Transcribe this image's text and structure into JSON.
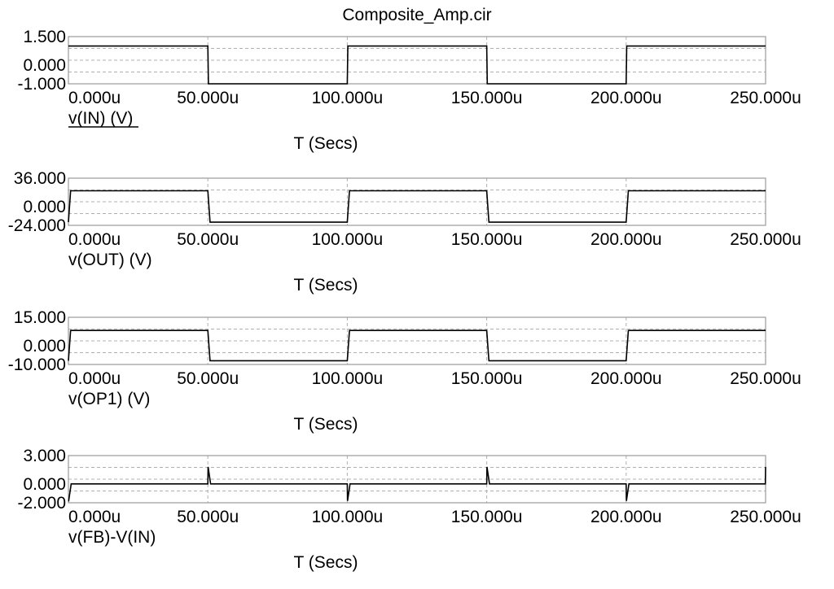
{
  "window_title": "Composite_Amp.cir",
  "chart_data": [
    {
      "type": "line",
      "series_label": "v(IN) (V)",
      "selected": true,
      "xlabel": "T (Secs)",
      "x_ticks": [
        "0.000u",
        "50.000u",
        "100.000u",
        "150.000u",
        "200.000u",
        "250.000u"
      ],
      "xlim": [
        0,
        250
      ],
      "y_ticks": [
        "1.500",
        "0.000",
        "-1.000"
      ],
      "ylim": [
        -1,
        1.5
      ],
      "series": [
        {
          "x": [
            0,
            50,
            50.2,
            100,
            100.2,
            150,
            150.2,
            200,
            200.2,
            250
          ],
          "y": [
            1,
            1,
            -1,
            -1,
            1,
            1,
            -1,
            -1,
            1,
            1
          ]
        }
      ]
    },
    {
      "type": "line",
      "series_label": "v(OUT) (V)",
      "selected": false,
      "xlabel": "T (Secs)",
      "x_ticks": [
        "0.000u",
        "50.000u",
        "100.000u",
        "150.000u",
        "200.000u",
        "250.000u"
      ],
      "xlim": [
        0,
        250
      ],
      "y_ticks": [
        "36.000",
        "0.000",
        "-24.000"
      ],
      "ylim": [
        -24,
        36
      ],
      "series": [
        {
          "x": [
            0,
            0.8,
            50,
            50.8,
            100,
            100.8,
            150,
            150.8,
            200,
            200.8,
            250
          ],
          "y": [
            -20,
            20,
            20,
            -20,
            -20,
            20,
            20,
            -20,
            -20,
            20,
            20
          ]
        }
      ]
    },
    {
      "type": "line",
      "series_label": "v(OP1) (V)",
      "selected": false,
      "xlabel": "T (Secs)",
      "x_ticks": [
        "0.000u",
        "50.000u",
        "100.000u",
        "150.000u",
        "200.000u",
        "250.000u"
      ],
      "xlim": [
        0,
        250
      ],
      "y_ticks": [
        "15.000",
        "0.000",
        "-10.000"
      ],
      "ylim": [
        -10,
        15
      ],
      "series": [
        {
          "x": [
            0,
            0.8,
            50,
            50.8,
            100,
            100.8,
            150,
            150.8,
            200,
            200.8,
            250
          ],
          "y": [
            -8,
            8,
            8,
            -8,
            -8,
            8,
            8,
            -8,
            -8,
            8,
            8
          ]
        }
      ]
    },
    {
      "type": "line",
      "series_label": "v(FB)-V(IN)",
      "selected": false,
      "xlabel": "T (Secs)",
      "x_ticks": [
        "0.000u",
        "50.000u",
        "100.000u",
        "150.000u",
        "200.000u",
        "250.000u"
      ],
      "xlim": [
        0,
        250
      ],
      "y_ticks": [
        "3.000",
        "0.000",
        "-2.000"
      ],
      "ylim": [
        -2,
        3
      ],
      "series": [
        {
          "x": [
            0,
            0.1,
            1,
            3,
            50,
            50.1,
            51,
            53,
            100,
            100.1,
            101,
            103,
            150,
            150.1,
            151,
            153,
            200,
            200.1,
            201,
            203,
            249.9,
            250
          ],
          "y": [
            -1.8,
            -1.8,
            0,
            0,
            0,
            1.8,
            0,
            0,
            0,
            -1.8,
            0,
            0,
            0,
            1.8,
            0,
            0,
            0,
            -1.8,
            0,
            0,
            0,
            1.8
          ]
        }
      ]
    }
  ]
}
